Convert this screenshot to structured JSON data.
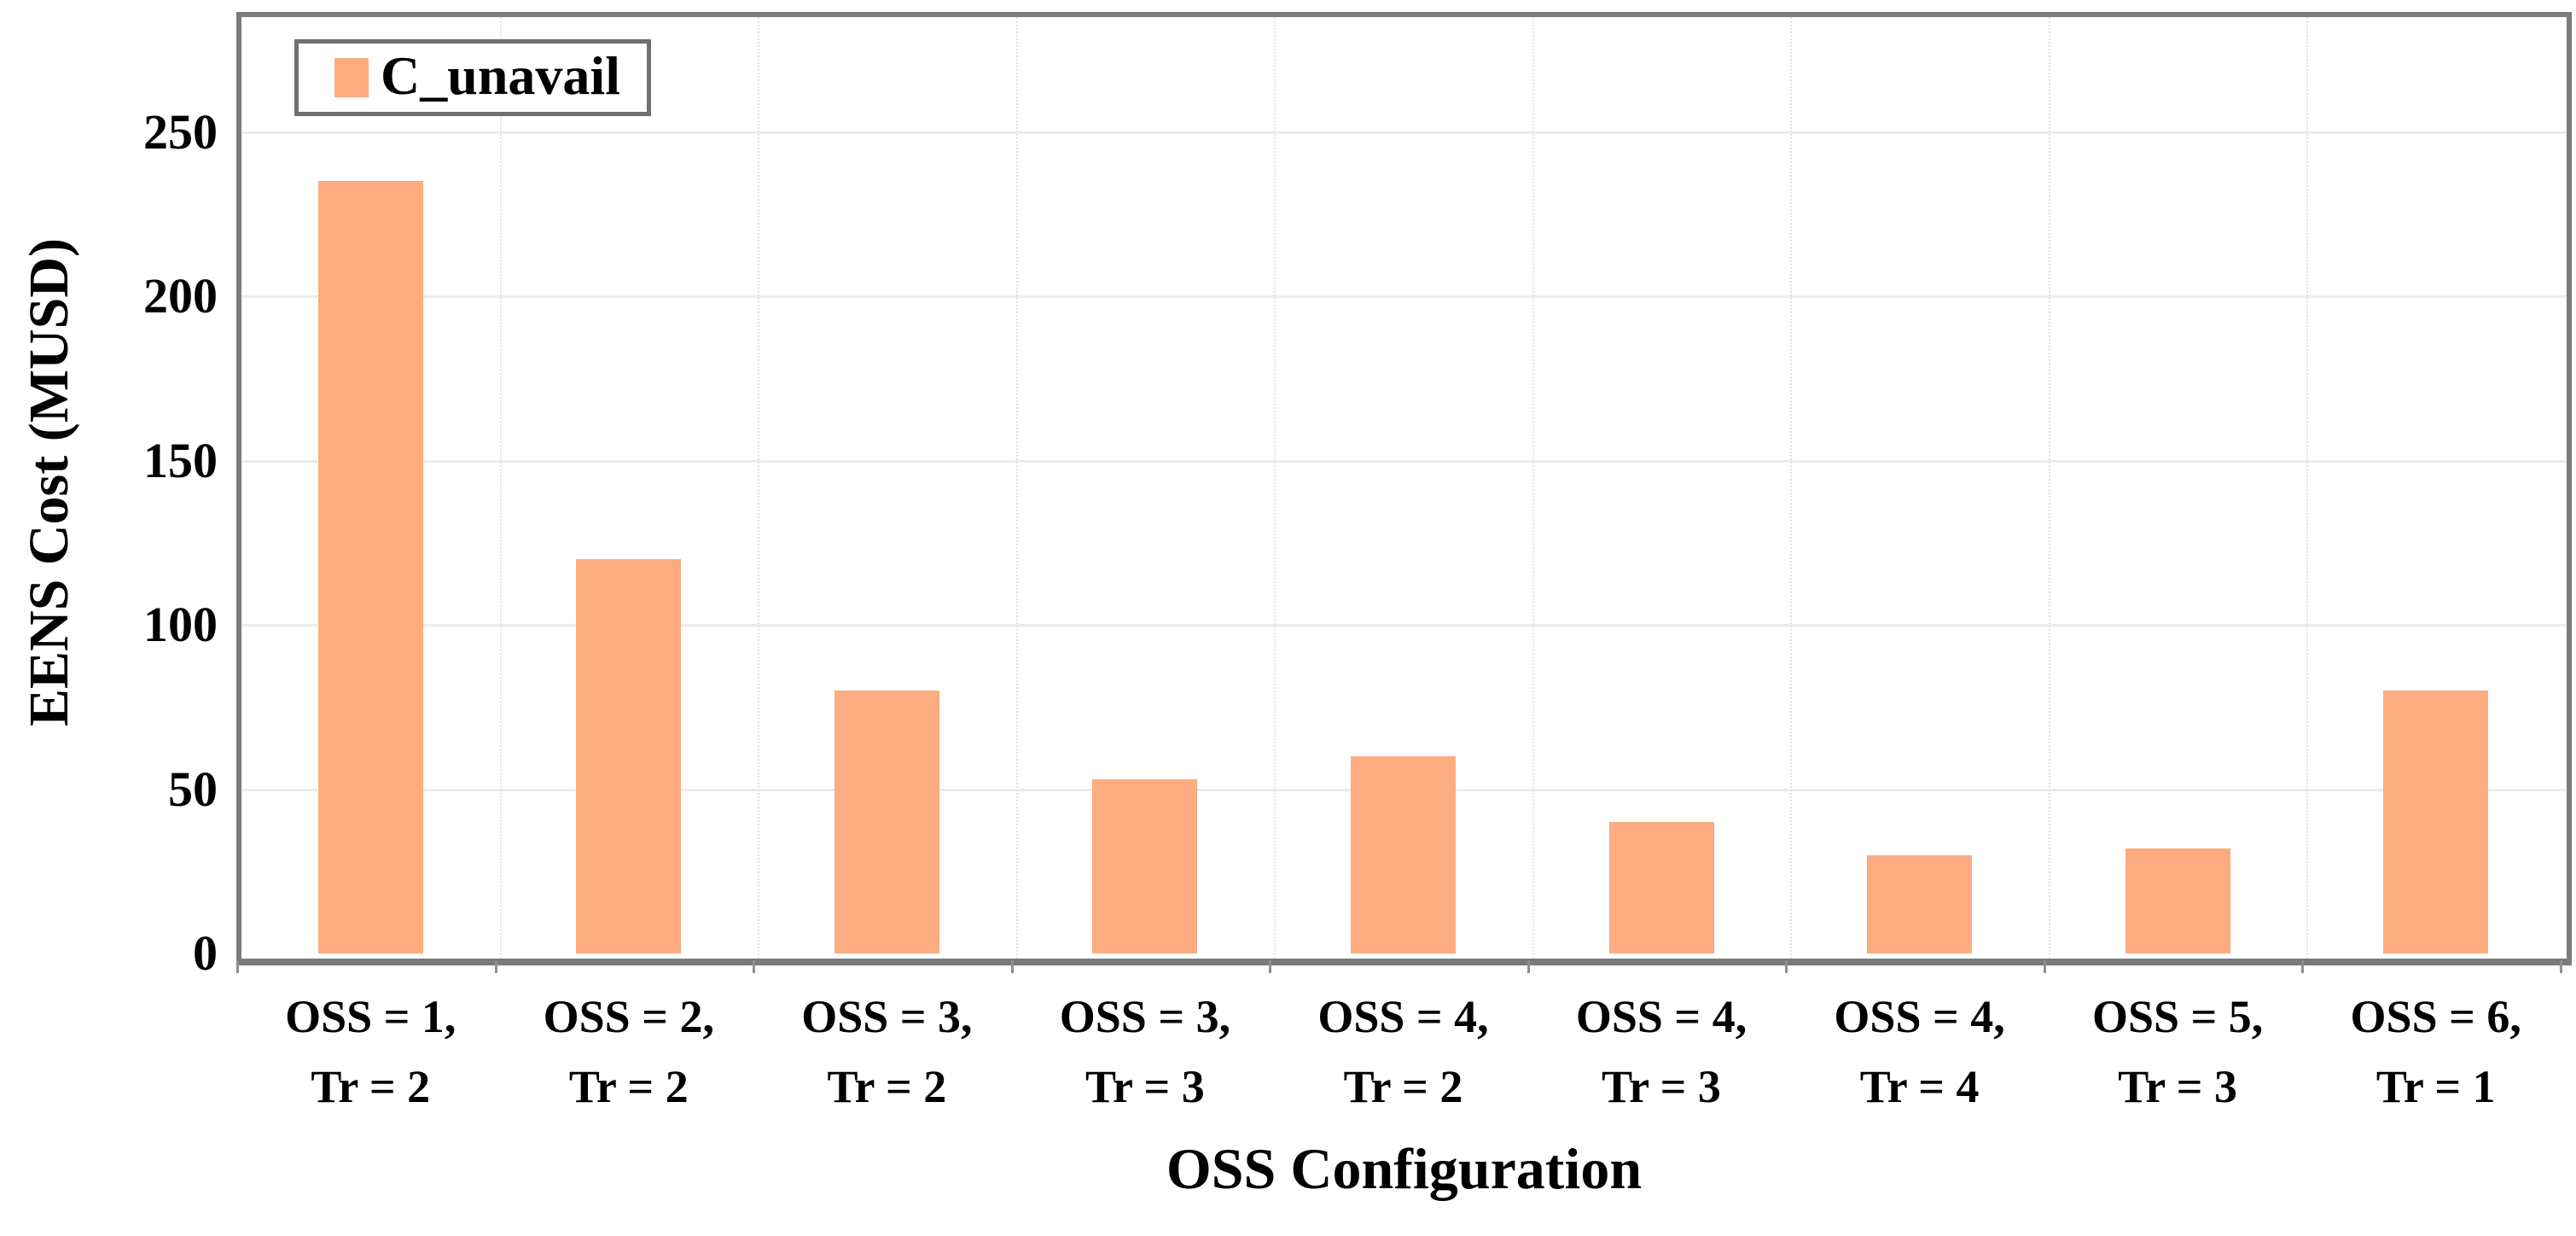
{
  "chart_data": {
    "type": "bar",
    "title": "",
    "categories": [
      [
        "OSS = 1,",
        "Tr = 2"
      ],
      [
        "OSS = 2,",
        "Tr = 2"
      ],
      [
        "OSS = 3,",
        "Tr = 2"
      ],
      [
        "OSS = 3,",
        "Tr = 3"
      ],
      [
        "OSS = 4,",
        "Tr = 2"
      ],
      [
        "OSS = 4,",
        "Tr = 3"
      ],
      [
        "OSS = 4,",
        "Tr = 4"
      ],
      [
        "OSS = 5,",
        "Tr = 3"
      ],
      [
        "OSS = 6,",
        "Tr = 1"
      ]
    ],
    "series": [
      {
        "name": "C_unavail",
        "values": [
          235,
          120,
          80,
          53,
          60,
          40,
          30,
          32,
          80
        ]
      }
    ],
    "xlabel": "OSS Configuration",
    "ylabel": "EENS Cost (MUSD)",
    "ylim": [
      0,
      285
    ],
    "yticks": [
      0,
      50,
      100,
      150,
      200,
      250
    ],
    "grid": {
      "horizontal": "solid",
      "vertical": "dotted at category boundaries"
    },
    "legend": {
      "position": "top-left",
      "entries": [
        "C_unavail"
      ]
    }
  },
  "colors": {
    "bar": "#FCAC80",
    "frame": "#7b7b7b",
    "h_gridline": "#ececec",
    "v_gridline": "#e2e2e2",
    "text": "#000000",
    "background": "#ffffff"
  }
}
